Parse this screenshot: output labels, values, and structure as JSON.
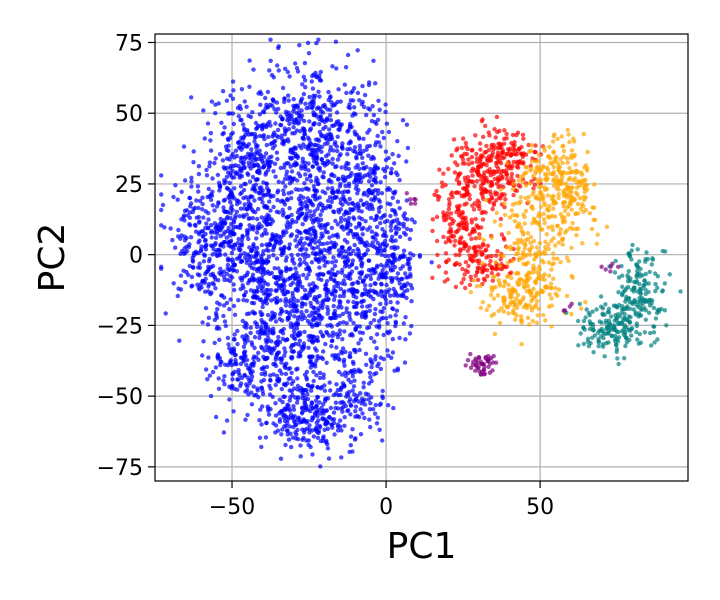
{
  "chart_data": {
    "type": "scatter",
    "title": "",
    "xlabel": "PC1",
    "ylabel": "PC2",
    "xlim": [
      -75,
      98
    ],
    "ylim": [
      -80,
      78
    ],
    "xticks": [
      -50,
      0,
      50
    ],
    "yticks": [
      -75,
      -50,
      -25,
      0,
      25,
      50,
      75
    ],
    "xtick_labels": [
      "−50",
      "0",
      "50"
    ],
    "ytick_labels": [
      "−75",
      "−50",
      "−25",
      "0",
      "25",
      "50",
      "75"
    ],
    "grid": true,
    "legend": "none",
    "series": [
      {
        "color": "#0000ff",
        "clusters": [
          {
            "cx": -58,
            "cy": 5,
            "sx": 7,
            "sy": 12,
            "n": 300
          },
          {
            "cx": -45,
            "cy": 32,
            "sx": 7,
            "sy": 14,
            "n": 320
          },
          {
            "cx": -40,
            "cy": -5,
            "sx": 8,
            "sy": 16,
            "n": 380
          },
          {
            "cx": -42,
            "cy": -40,
            "sx": 8,
            "sy": 9,
            "n": 220
          },
          {
            "cx": -25,
            "cy": 45,
            "sx": 8,
            "sy": 12,
            "n": 320
          },
          {
            "cx": -22,
            "cy": 10,
            "sx": 9,
            "sy": 16,
            "n": 420
          },
          {
            "cx": -25,
            "cy": -28,
            "sx": 9,
            "sy": 14,
            "n": 380
          },
          {
            "cx": -25,
            "cy": -58,
            "sx": 7,
            "sy": 6,
            "n": 200
          },
          {
            "cx": -7,
            "cy": 30,
            "sx": 6,
            "sy": 14,
            "n": 240
          },
          {
            "cx": -5,
            "cy": -10,
            "sx": 7,
            "sy": 14,
            "n": 280
          },
          {
            "cx": -10,
            "cy": -48,
            "sx": 5,
            "sy": 8,
            "n": 120
          },
          {
            "cx": 4,
            "cy": -2,
            "sx": 3,
            "sy": 13,
            "n": 110
          }
        ]
      },
      {
        "color": "#ff0000",
        "clusters": [
          {
            "cx": 33,
            "cy": 30,
            "sx": 6,
            "sy": 7,
            "n": 220
          },
          {
            "cx": 25,
            "cy": 12,
            "sx": 5,
            "sy": 10,
            "n": 180
          },
          {
            "cx": 33,
            "cy": -3,
            "sx": 5,
            "sy": 4,
            "n": 80
          },
          {
            "cx": 42,
            "cy": 34,
            "sx": 4,
            "sy": 5,
            "n": 70
          }
        ]
      },
      {
        "color": "#ffa500",
        "clusters": [
          {
            "cx": 58,
            "cy": 22,
            "sx": 5,
            "sy": 9,
            "n": 200
          },
          {
            "cx": 48,
            "cy": 6,
            "sx": 6,
            "sy": 9,
            "n": 160
          },
          {
            "cx": 44,
            "cy": -14,
            "sx": 7,
            "sy": 6,
            "n": 170
          },
          {
            "cx": 50,
            "cy": 30,
            "sx": 4,
            "sy": 5,
            "n": 60
          }
        ]
      },
      {
        "color": "#008080",
        "clusters": [
          {
            "cx": 72,
            "cy": -26,
            "sx": 5,
            "sy": 4,
            "n": 140
          },
          {
            "cx": 82,
            "cy": -14,
            "sx": 4,
            "sy": 8,
            "n": 170
          }
        ]
      },
      {
        "color": "#800080",
        "clusters": [
          {
            "cx": 31,
            "cy": -39,
            "sx": 2.5,
            "sy": 2,
            "n": 45
          },
          {
            "cx": 9,
            "cy": 19,
            "sx": 1,
            "sy": 1,
            "n": 6
          },
          {
            "cx": 73,
            "cy": -5,
            "sx": 1.5,
            "sy": 1.5,
            "n": 6
          },
          {
            "cx": 60,
            "cy": -19,
            "sx": 1,
            "sy": 1,
            "n": 4
          }
        ]
      }
    ]
  }
}
